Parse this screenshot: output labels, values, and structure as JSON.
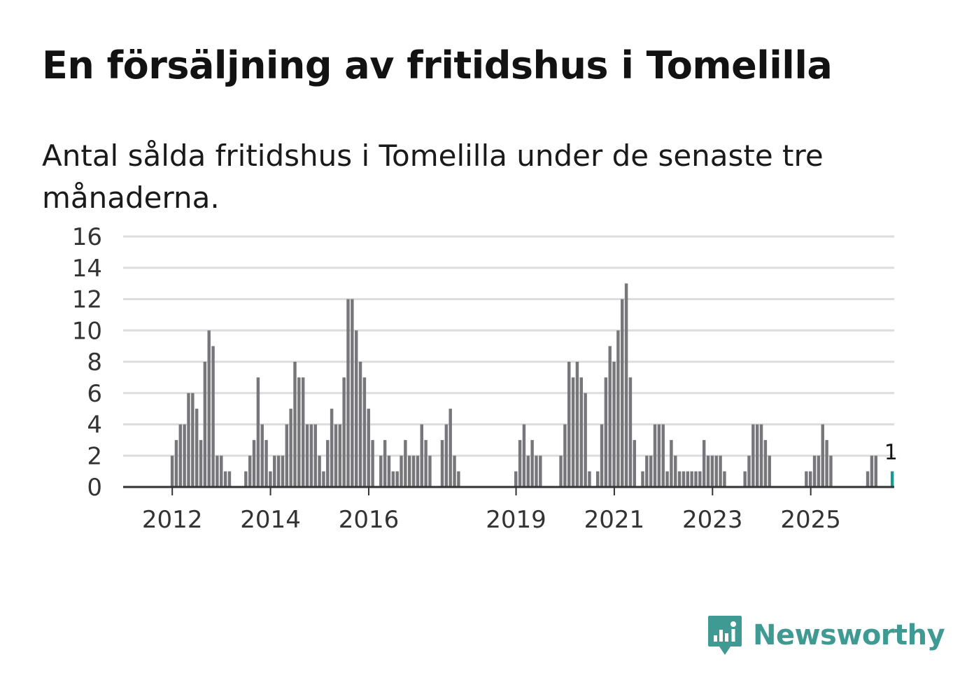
{
  "title": "En försäljning av fritidshus i Tomelilla",
  "subtitle": "Antal sålda fritidshus i Tomelilla under de senaste tre månaderna.",
  "brand": {
    "name": "Newsworthy",
    "icon": "newsworthy-logo-icon"
  },
  "colors": {
    "bar": "#77767b",
    "highlight": "#159b93",
    "grid": "#dddddd",
    "axis": "#333333",
    "brand": "#3f9a94"
  },
  "chart_data": {
    "type": "bar",
    "title": "",
    "xlabel": "",
    "ylabel": "",
    "ylim": [
      0,
      16
    ],
    "yticks": [
      0,
      2,
      4,
      6,
      8,
      10,
      12,
      14,
      16
    ],
    "grid": true,
    "x_domain": [
      2011.0,
      2026.7
    ],
    "xticks": [
      2012,
      2014,
      2016,
      2019,
      2021,
      2023,
      2025
    ],
    "series": [
      {
        "name": "Antal sålda fritidshus",
        "start": 2012.0,
        "step": 0.0833,
        "values": [
          2,
          3,
          4,
          4,
          6,
          6,
          5,
          3,
          8,
          10,
          9,
          2,
          2,
          1,
          1,
          0,
          0,
          0,
          1,
          2,
          3,
          7,
          4,
          3,
          1,
          2,
          2,
          2,
          4,
          5,
          8,
          7,
          7,
          4,
          4,
          4,
          2,
          1,
          3,
          5,
          4,
          4,
          7,
          12,
          12,
          10,
          8,
          7,
          5,
          3,
          0,
          2,
          3,
          2,
          1,
          1,
          2,
          3,
          2,
          2,
          2,
          4,
          3,
          2,
          0,
          0,
          3,
          4,
          5,
          2,
          1,
          0,
          0,
          0,
          0,
          0,
          0,
          0,
          0,
          0,
          0,
          0,
          0,
          0,
          1,
          3,
          4,
          2,
          3,
          2,
          2,
          0,
          0,
          0,
          0,
          2,
          4,
          8,
          7,
          8,
          7,
          6,
          1,
          0,
          1,
          4,
          7,
          9,
          8,
          10,
          12,
          13,
          7,
          3,
          0,
          1,
          2,
          2,
          4,
          4,
          4,
          1,
          3,
          2,
          1,
          1,
          1,
          1,
          1,
          1,
          3,
          2,
          2,
          2,
          2,
          1,
          0,
          0,
          0,
          0,
          1,
          2,
          4,
          4,
          4,
          3,
          2,
          0,
          0,
          0,
          0,
          0,
          0,
          0,
          0,
          1,
          1,
          2,
          2,
          4,
          3,
          2,
          0,
          0,
          0,
          0,
          0,
          0,
          0,
          0,
          1,
          2,
          2
        ],
        "color": "#77767b"
      }
    ],
    "highlight": {
      "index": 176,
      "value": 1,
      "label": "1",
      "color": "#159b93"
    }
  }
}
